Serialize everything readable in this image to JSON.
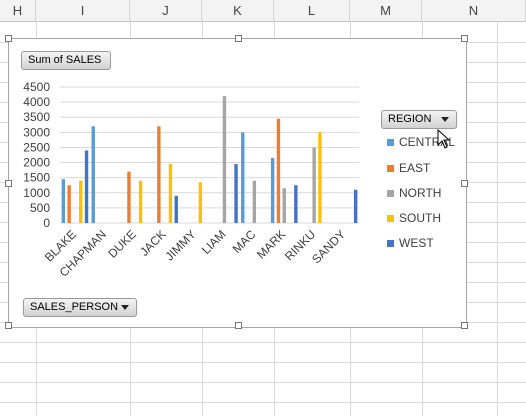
{
  "spreadsheet": {
    "columns": [
      "H",
      "I",
      "J",
      "K",
      "L",
      "M",
      "N"
    ]
  },
  "pivot_chart": {
    "value_field_button": "Sum of SALES",
    "legend_field_button": "REGION",
    "axis_field_button": "SALES_PERSON"
  },
  "colors": {
    "CENTRAL": "#5b9bd5",
    "EAST": "#ed7d31",
    "NORTH": "#a5a5a5",
    "SOUTH": "#ffc000",
    "WEST": "#4472c4"
  },
  "chart_data": {
    "type": "bar",
    "categories": [
      "BLAKE",
      "CHAPMAN",
      "DUKE",
      "JACK",
      "JIMMY",
      "LIAM",
      "MAC",
      "MARK",
      "RINKU",
      "SANDY"
    ],
    "series": [
      {
        "name": "CENTRAL",
        "values": [
          1450,
          3200,
          0,
          0,
          0,
          0,
          3000,
          2150,
          0,
          0
        ]
      },
      {
        "name": "EAST",
        "values": [
          1250,
          0,
          1700,
          3200,
          0,
          0,
          0,
          3450,
          0,
          0
        ]
      },
      {
        "name": "NORTH",
        "values": [
          0,
          0,
          0,
          0,
          0,
          4200,
          1400,
          1150,
          2500,
          0
        ]
      },
      {
        "name": "SOUTH",
        "values": [
          1400,
          0,
          1400,
          1950,
          1350,
          0,
          0,
          0,
          3000,
          0
        ]
      },
      {
        "name": "WEST",
        "values": [
          2400,
          0,
          0,
          900,
          0,
          1950,
          0,
          1250,
          0,
          1100
        ]
      }
    ],
    "legend_labels": [
      "CENTRAL",
      "EAST",
      "NORTH",
      "SOUTH",
      "WEST"
    ],
    "y_ticks": [
      "0",
      "500",
      "1000",
      "1500",
      "2000",
      "2500",
      "3000",
      "3500",
      "4000",
      "4500"
    ],
    "ylim": [
      0,
      4500
    ],
    "grid": true,
    "legend_position": "right"
  }
}
